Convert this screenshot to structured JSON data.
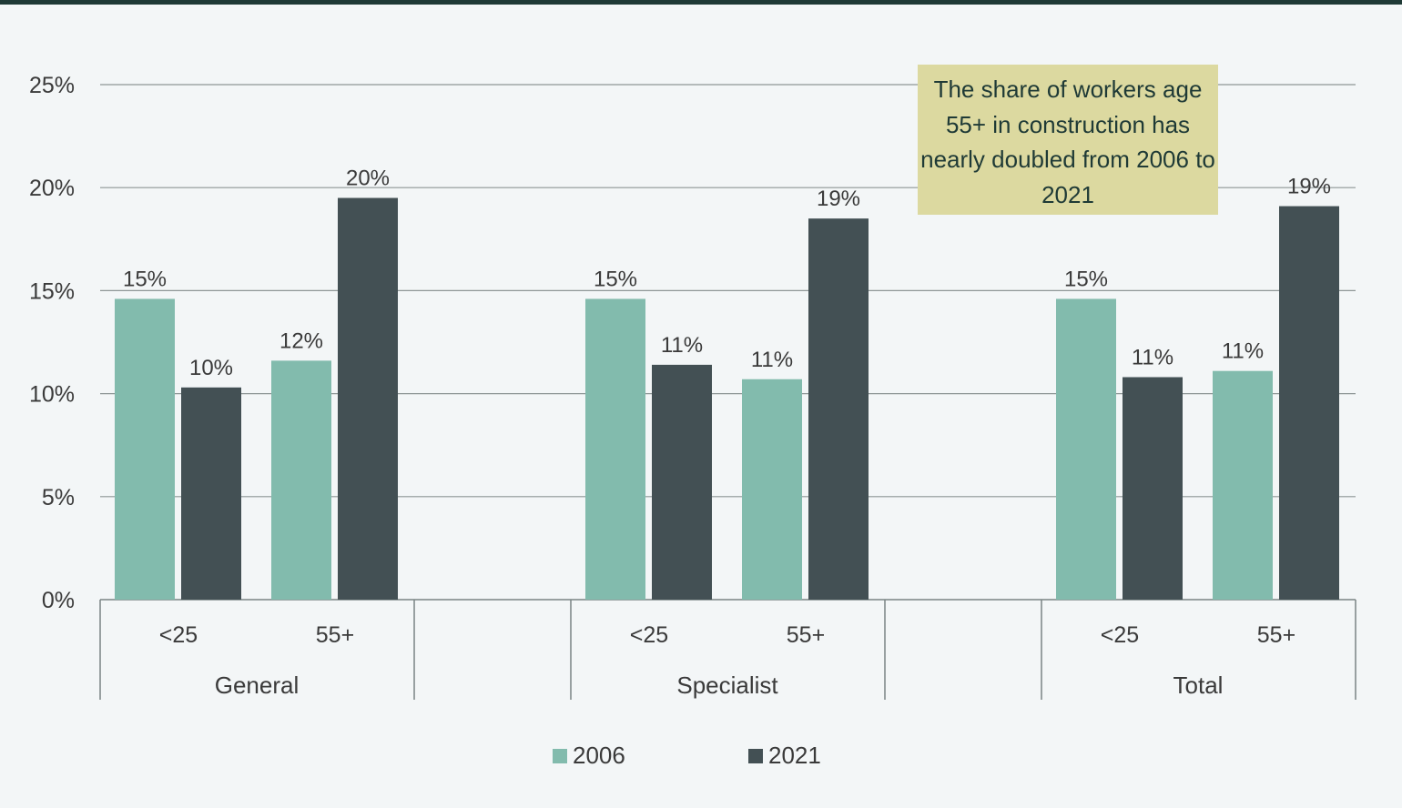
{
  "chart_data": {
    "type": "bar",
    "groups": [
      {
        "name": "General",
        "categories": [
          "<25",
          "55+"
        ]
      },
      {
        "name": "Specialist",
        "categories": [
          "<25",
          "55+"
        ]
      },
      {
        "name": "Total",
        "categories": [
          "<25",
          "55+"
        ]
      }
    ],
    "series": [
      {
        "name": "2006",
        "color": "#82bbad",
        "values": [
          14.6,
          11.6,
          14.6,
          10.7,
          14.6,
          11.1
        ],
        "labels": [
          "15%",
          "12%",
          "15%",
          "11%",
          "15%",
          "11%"
        ]
      },
      {
        "name": "2021",
        "color": "#435054",
        "values": [
          10.3,
          19.5,
          11.4,
          18.5,
          10.8,
          19.1
        ],
        "labels": [
          "10%",
          "20%",
          "11%",
          "19%",
          "11%",
          "19%"
        ]
      }
    ],
    "ylim": [
      0,
      25
    ],
    "yticks": [
      "0%",
      "5%",
      "10%",
      "15%",
      "20%",
      "25%"
    ],
    "grid": true,
    "legend": "bottom",
    "annotation": "The share of workers age 55+ in construction has nearly doubled from 2006 to 2021"
  }
}
